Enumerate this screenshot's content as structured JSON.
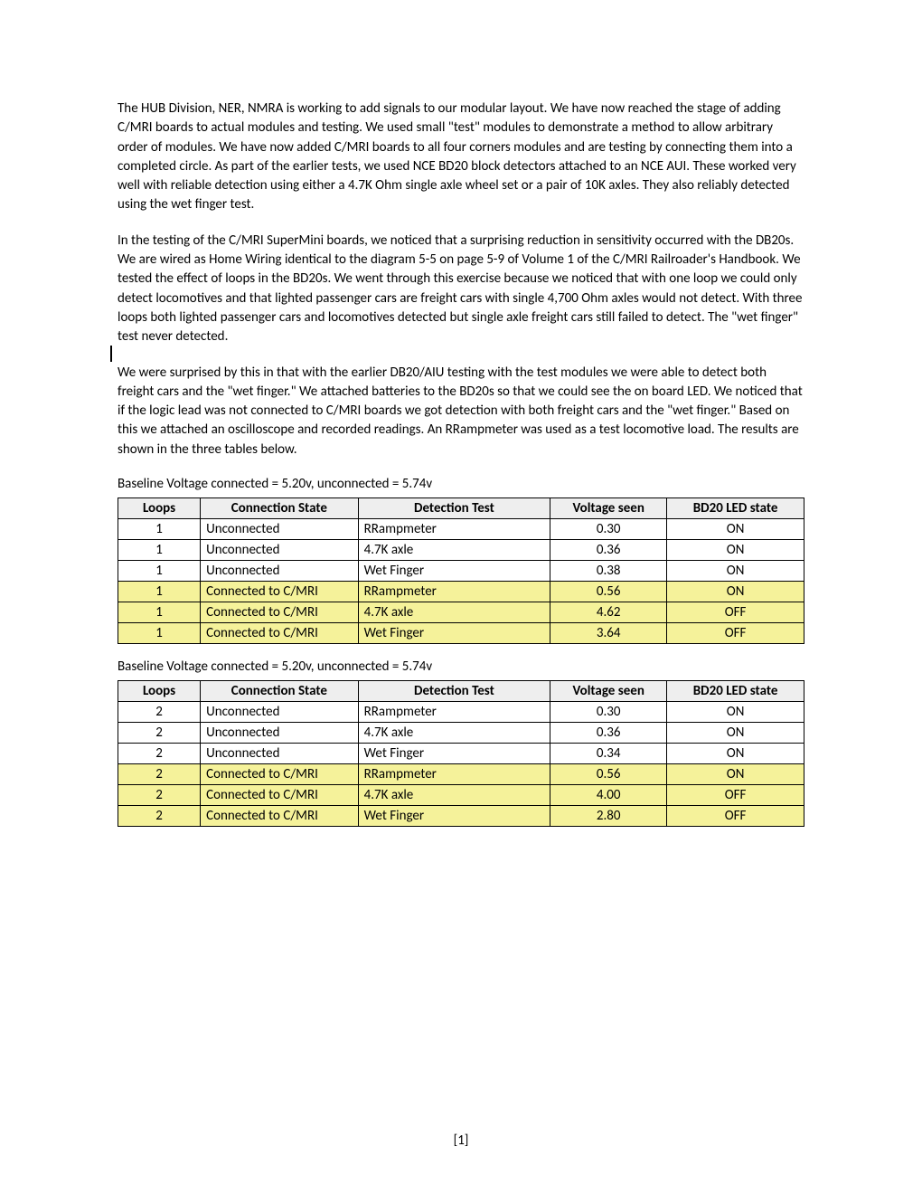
{
  "paragraphs": {
    "p1": "The HUB Division, NER, NMRA is working to add signals to our modular layout.  We have now reached the stage of adding C/MRI boards to actual modules and testing.  We used small \"test\" modules to demonstrate a method to allow arbitrary order of modules.  We have now added C/MRI boards to all four corners modules and are testing by connecting them into a completed circle.  As part of the earlier tests, we used NCE BD20 block detectors attached to an NCE AUI.  These worked very well with reliable detection using either a 4.7K Ohm single axle wheel set or a pair of 10K axles.  They also reliably detected using the wet finger test.",
    "p2": "In the testing of the C/MRI SuperMini boards, we noticed that a surprising reduction in sensitivity occurred with the DB20s.  We are wired as Home Wiring identical to the diagram 5-5 on page 5-9 of Volume 1 of the C/MRI Railroader's Handbook.  We tested the effect of loops in the BD20s.  We went through this exercise because we noticed that with one loop we could only detect locomotives and that lighted passenger cars are freight cars with single 4,700 Ohm axles would not detect.  With three loops both lighted passenger cars and locomotives detected but single axle freight cars still failed to detect.  The \"wet finger\" test never detected.",
    "p3": "We were surprised by this in that with the earlier DB20/AIU testing with the test modules we were able to detect both freight cars and the \"wet finger.\"   We attached batteries to the BD20s so that we could see the on board LED.  We noticed that if the logic lead was not connected to C/MRI boards we got detection with both freight cars and the \"wet finger.\"   Based on this we attached an oscilloscope and recorded readings.  An RRampmeter was used as a test locomotive load.  The results are shown in the three tables below."
  },
  "caption1": "Baseline Voltage connected = 5.20v, unconnected = 5.74v",
  "caption2": "Baseline Voltage connected = 5.20v, unconnected = 5.74v",
  "headers": {
    "loops": "Loops",
    "conn": "Connection State",
    "test": "Detection Test",
    "volt": "Voltage seen",
    "led": "BD20 LED state"
  },
  "table1": [
    {
      "loops": "1",
      "conn": "Unconnected",
      "test": "RRampmeter",
      "volt": "0.30",
      "led": "ON",
      "hl": false
    },
    {
      "loops": "1",
      "conn": "Unconnected",
      "test": "4.7K axle",
      "volt": "0.36",
      "led": "ON",
      "hl": false
    },
    {
      "loops": "1",
      "conn": "Unconnected",
      "test": "Wet Finger",
      "volt": "0.38",
      "led": "ON",
      "hl": false
    },
    {
      "loops": "1",
      "conn": "Connected to C/MRI",
      "test": "RRampmeter",
      "volt": "0.56",
      "led": "ON",
      "hl": true
    },
    {
      "loops": "1",
      "conn": "Connected to C/MRI",
      "test": "4.7K axle",
      "volt": "4.62",
      "led": "OFF",
      "hl": true
    },
    {
      "loops": "1",
      "conn": "Connected to C/MRI",
      "test": "Wet Finger",
      "volt": "3.64",
      "led": "OFF",
      "hl": true
    }
  ],
  "table2": [
    {
      "loops": "2",
      "conn": "Unconnected",
      "test": "RRampmeter",
      "volt": "0.30",
      "led": "ON",
      "hl": false
    },
    {
      "loops": "2",
      "conn": "Unconnected",
      "test": "4.7K axle",
      "volt": "0.36",
      "led": "ON",
      "hl": false
    },
    {
      "loops": "2",
      "conn": "Unconnected",
      "test": "Wet Finger",
      "volt": "0.34",
      "led": "ON",
      "hl": false
    },
    {
      "loops": "2",
      "conn": "Connected to C/MRI",
      "test": "RRampmeter",
      "volt": "0.56",
      "led": "ON",
      "hl": true
    },
    {
      "loops": "2",
      "conn": "Connected to C/MRI",
      "test": "4.7K axle",
      "volt": "4.00",
      "led": "OFF",
      "hl": true
    },
    {
      "loops": "2",
      "conn": "Connected to C/MRI",
      "test": "Wet Finger",
      "volt": "2.80",
      "led": "OFF",
      "hl": true
    }
  ],
  "pagenum": "[1]",
  "colors": {
    "header_bg": "#eeeeee",
    "highlight_bg": "#f5f29a",
    "border": "#000000",
    "text": "#000000"
  }
}
